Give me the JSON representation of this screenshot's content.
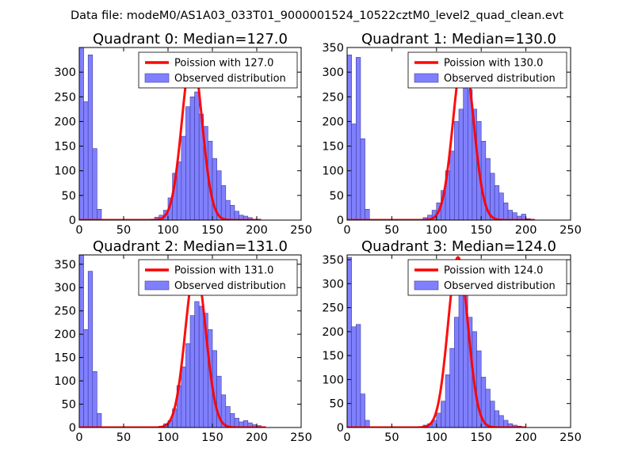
{
  "suptitle": "Data file: modeM0/AS1A03_033T01_9000001524_10522cztM0_level2_quad_clean.evt",
  "colors": {
    "bar": "#8080ff",
    "bar_edge": "#3c3ca0",
    "poisson": "#ff0000",
    "axis": "#000000"
  },
  "chart_data": [
    {
      "type": "bar",
      "title": "Quadrant 0: Median=127.0",
      "xlim": [
        0,
        250
      ],
      "ylim": [
        0,
        350
      ],
      "xticks": [
        "0",
        "50",
        "100",
        "150",
        "200",
        "250"
      ],
      "yticks": [
        "0",
        "50",
        "100",
        "150",
        "200",
        "250",
        "300"
      ],
      "legend": {
        "placement": "top-right",
        "line_label": "Poission with 127.0",
        "bar_label": "Observed distribution"
      },
      "bin_width": 5,
      "bins": [
        {
          "x": 0,
          "y": 350
        },
        {
          "x": 5,
          "y": 240
        },
        {
          "x": 10,
          "y": 335
        },
        {
          "x": 15,
          "y": 145
        },
        {
          "x": 20,
          "y": 22
        },
        {
          "x": 80,
          "y": 2
        },
        {
          "x": 85,
          "y": 6
        },
        {
          "x": 90,
          "y": 10
        },
        {
          "x": 95,
          "y": 20
        },
        {
          "x": 100,
          "y": 45
        },
        {
          "x": 105,
          "y": 95
        },
        {
          "x": 110,
          "y": 118
        },
        {
          "x": 115,
          "y": 170
        },
        {
          "x": 120,
          "y": 230
        },
        {
          "x": 125,
          "y": 250
        },
        {
          "x": 130,
          "y": 260
        },
        {
          "x": 135,
          "y": 215
        },
        {
          "x": 140,
          "y": 190
        },
        {
          "x": 145,
          "y": 160
        },
        {
          "x": 150,
          "y": 125
        },
        {
          "x": 155,
          "y": 100
        },
        {
          "x": 160,
          "y": 70
        },
        {
          "x": 165,
          "y": 40
        },
        {
          "x": 170,
          "y": 30
        },
        {
          "x": 175,
          "y": 18
        },
        {
          "x": 180,
          "y": 10
        },
        {
          "x": 185,
          "y": 8
        },
        {
          "x": 190,
          "y": 5
        },
        {
          "x": 195,
          "y": 2
        }
      ],
      "poisson": {
        "mean": 127.0,
        "peak": 335,
        "x_range": [
          80,
          205
        ]
      }
    },
    {
      "type": "bar",
      "title": "Quadrant 1: Median=130.0",
      "xlim": [
        0,
        250
      ],
      "ylim": [
        0,
        350
      ],
      "xticks": [
        "0",
        "50",
        "100",
        "150",
        "200",
        "250"
      ],
      "yticks": [
        "0",
        "50",
        "100",
        "150",
        "200",
        "250",
        "300",
        "350"
      ],
      "legend": {
        "placement": "top-right",
        "line_label": "Poission with 130.0",
        "bar_label": "Observed distribution"
      },
      "bin_width": 5,
      "bins": [
        {
          "x": 0,
          "y": 335
        },
        {
          "x": 5,
          "y": 195
        },
        {
          "x": 10,
          "y": 330
        },
        {
          "x": 15,
          "y": 165
        },
        {
          "x": 20,
          "y": 22
        },
        {
          "x": 85,
          "y": 5
        },
        {
          "x": 90,
          "y": 10
        },
        {
          "x": 95,
          "y": 20
        },
        {
          "x": 100,
          "y": 35
        },
        {
          "x": 105,
          "y": 60
        },
        {
          "x": 110,
          "y": 100
        },
        {
          "x": 115,
          "y": 140
        },
        {
          "x": 120,
          "y": 200
        },
        {
          "x": 125,
          "y": 225
        },
        {
          "x": 130,
          "y": 290
        },
        {
          "x": 135,
          "y": 265
        },
        {
          "x": 140,
          "y": 225
        },
        {
          "x": 145,
          "y": 200
        },
        {
          "x": 150,
          "y": 160
        },
        {
          "x": 155,
          "y": 125
        },
        {
          "x": 160,
          "y": 95
        },
        {
          "x": 165,
          "y": 70
        },
        {
          "x": 170,
          "y": 55
        },
        {
          "x": 175,
          "y": 35
        },
        {
          "x": 180,
          "y": 20
        },
        {
          "x": 185,
          "y": 15
        },
        {
          "x": 190,
          "y": 8
        },
        {
          "x": 195,
          "y": 12
        },
        {
          "x": 200,
          "y": 3
        }
      ],
      "poisson": {
        "mean": 130.0,
        "peak": 335,
        "x_range": [
          85,
          210
        ]
      }
    },
    {
      "type": "bar",
      "title": "Quadrant 2: Median=131.0",
      "xlim": [
        0,
        250
      ],
      "ylim": [
        0,
        370
      ],
      "xticks": [
        "0",
        "50",
        "100",
        "150",
        "200",
        "250"
      ],
      "yticks": [
        "0",
        "50",
        "100",
        "150",
        "200",
        "250",
        "300",
        "350"
      ],
      "legend": {
        "placement": "top-right",
        "line_label": "Poission with 131.0",
        "bar_label": "Observed distribution"
      },
      "bin_width": 5,
      "bins": [
        {
          "x": 0,
          "y": 370
        },
        {
          "x": 5,
          "y": 210
        },
        {
          "x": 10,
          "y": 335
        },
        {
          "x": 15,
          "y": 120
        },
        {
          "x": 20,
          "y": 30
        },
        {
          "x": 90,
          "y": 3
        },
        {
          "x": 95,
          "y": 8
        },
        {
          "x": 100,
          "y": 15
        },
        {
          "x": 105,
          "y": 40
        },
        {
          "x": 110,
          "y": 90
        },
        {
          "x": 115,
          "y": 130
        },
        {
          "x": 120,
          "y": 180
        },
        {
          "x": 125,
          "y": 240
        },
        {
          "x": 130,
          "y": 270
        },
        {
          "x": 135,
          "y": 260
        },
        {
          "x": 140,
          "y": 245
        },
        {
          "x": 145,
          "y": 210
        },
        {
          "x": 150,
          "y": 165
        },
        {
          "x": 155,
          "y": 110
        },
        {
          "x": 160,
          "y": 70
        },
        {
          "x": 165,
          "y": 45
        },
        {
          "x": 170,
          "y": 30
        },
        {
          "x": 175,
          "y": 20
        },
        {
          "x": 180,
          "y": 12
        },
        {
          "x": 185,
          "y": 15
        },
        {
          "x": 190,
          "y": 10
        },
        {
          "x": 195,
          "y": 6
        },
        {
          "x": 200,
          "y": 4
        },
        {
          "x": 205,
          "y": 2
        }
      ],
      "poisson": {
        "mean": 131.0,
        "peak": 345,
        "x_range": [
          90,
          210
        ]
      }
    },
    {
      "type": "bar",
      "title": "Quadrant 3: Median=124.0",
      "xlim": [
        0,
        250
      ],
      "ylim": [
        0,
        360
      ],
      "xticks": [
        "0",
        "50",
        "100",
        "150",
        "200",
        "250"
      ],
      "yticks": [
        "0",
        "50",
        "100",
        "150",
        "200",
        "250",
        "300",
        "350"
      ],
      "legend": {
        "placement": "top-right",
        "line_label": "Poission with 124.0",
        "bar_label": "Observed distribution"
      },
      "bin_width": 5,
      "bins": [
        {
          "x": 0,
          "y": 355
        },
        {
          "x": 5,
          "y": 210
        },
        {
          "x": 10,
          "y": 215
        },
        {
          "x": 15,
          "y": 70
        },
        {
          "x": 20,
          "y": 15
        },
        {
          "x": 80,
          "y": 2
        },
        {
          "x": 85,
          "y": 5
        },
        {
          "x": 90,
          "y": 8
        },
        {
          "x": 95,
          "y": 15
        },
        {
          "x": 100,
          "y": 30
        },
        {
          "x": 105,
          "y": 55
        },
        {
          "x": 110,
          "y": 110
        },
        {
          "x": 115,
          "y": 165
        },
        {
          "x": 120,
          "y": 230
        },
        {
          "x": 125,
          "y": 300
        },
        {
          "x": 130,
          "y": 290
        },
        {
          "x": 135,
          "y": 230
        },
        {
          "x": 140,
          "y": 200
        },
        {
          "x": 145,
          "y": 160
        },
        {
          "x": 150,
          "y": 105
        },
        {
          "x": 155,
          "y": 80
        },
        {
          "x": 160,
          "y": 55
        },
        {
          "x": 165,
          "y": 35
        },
        {
          "x": 170,
          "y": 25
        },
        {
          "x": 175,
          "y": 15
        },
        {
          "x": 180,
          "y": 8
        },
        {
          "x": 185,
          "y": 5
        },
        {
          "x": 190,
          "y": 3
        }
      ],
      "poisson": {
        "mean": 124.0,
        "peak": 355,
        "x_range": [
          80,
          200
        ]
      }
    }
  ]
}
